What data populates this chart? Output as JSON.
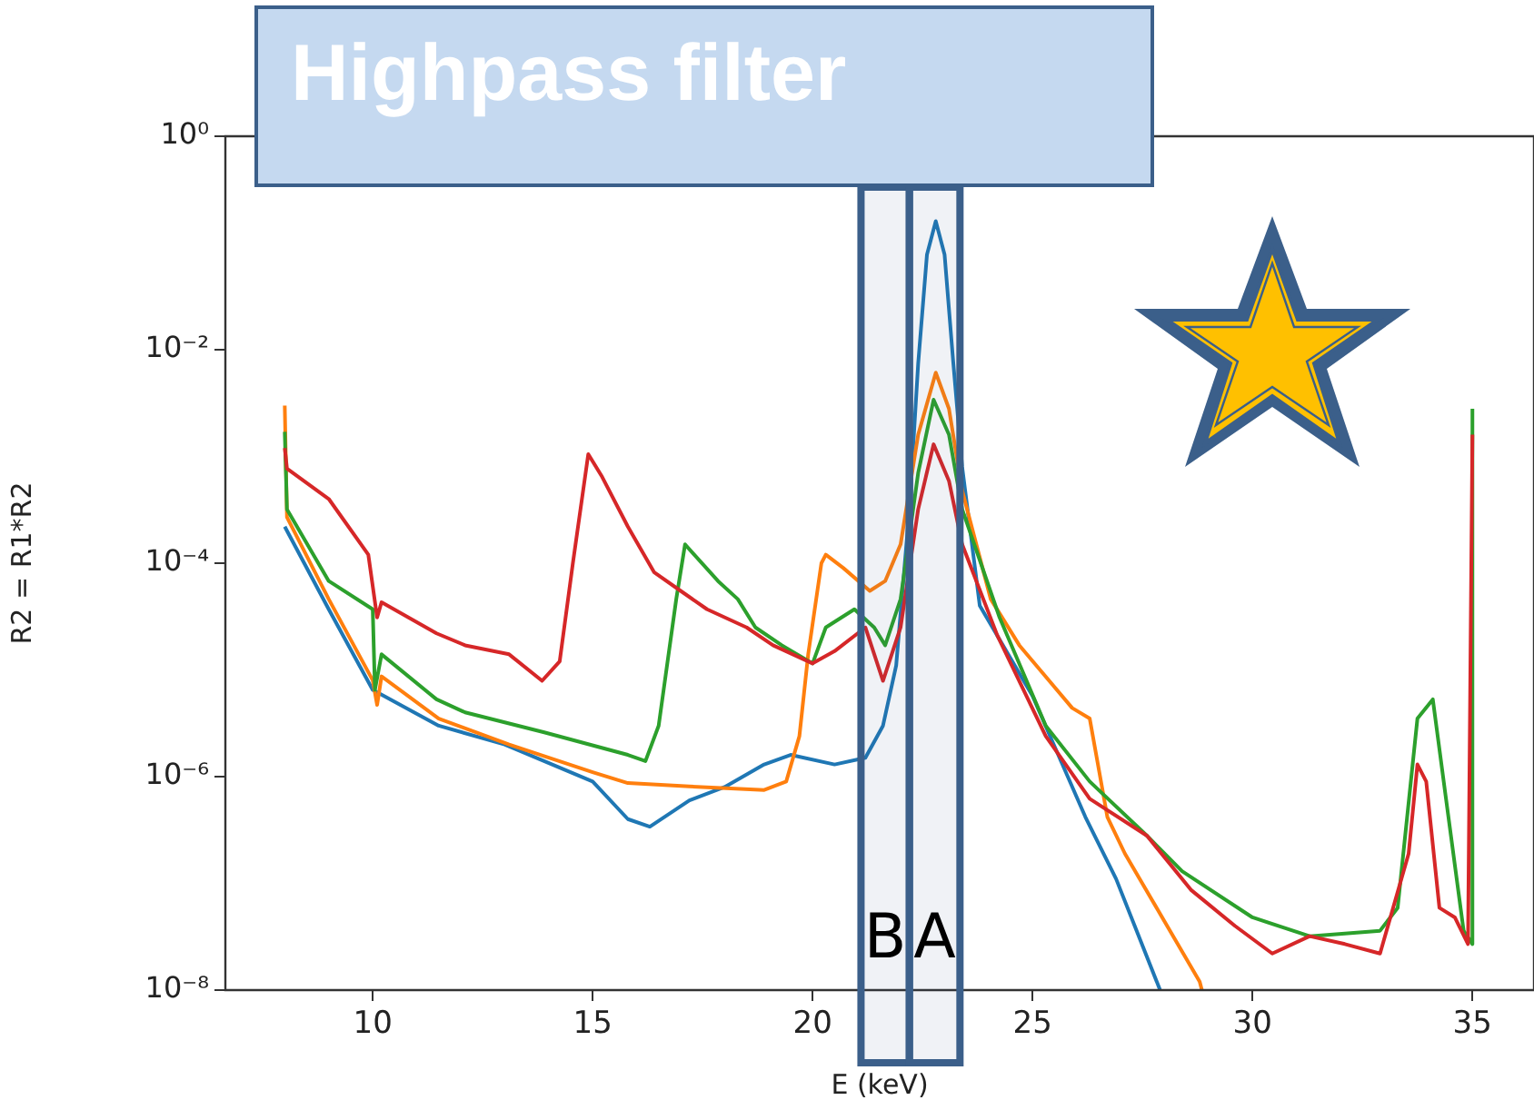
{
  "chart_data": {
    "type": "line",
    "title": "Highpass filter",
    "xlabel": "E (keV)",
    "ylabel": "R2 = R1*R2",
    "log": "y",
    "xlim": [
      6.65,
      36.4
    ],
    "xticks": [
      10,
      15,
      20,
      25,
      30,
      35
    ],
    "ylim": [
      1e-08,
      1
    ],
    "yticks": [
      {
        "value": 1e-08,
        "label": "10⁻⁸"
      },
      {
        "value": 1e-06,
        "label": "10⁻⁶"
      },
      {
        "value": 0.0001,
        "label": "10⁻⁴"
      },
      {
        "value": 0.01,
        "label": "10⁻²"
      },
      {
        "value": 1,
        "label": "10⁰"
      }
    ],
    "marker": "none",
    "line_style": "solid",
    "bands": [
      {
        "axis": "x",
        "from": 21.1,
        "to": 22.2,
        "label": "B",
        "color": "#3b5f8a"
      },
      {
        "axis": "x",
        "from": 22.2,
        "to": 23.35,
        "label": "A",
        "color": "#3b5f8a"
      }
    ],
    "series": [
      {
        "color": "#1f77b4",
        "x": [
          8.0,
          9.0,
          10.0,
          11.5,
          13.0,
          15.0,
          15.8,
          16.3,
          17.2,
          18.0,
          18.9,
          19.5,
          20.5,
          21.2,
          21.6,
          21.9,
          22.2,
          22.4,
          22.6,
          22.8,
          23.0,
          23.2,
          23.4,
          23.8,
          25.0,
          26.2,
          26.9,
          27.9
        ],
        "values": [
          0.00022,
          3.7e-05,
          6.5e-06,
          3e-06,
          2e-06,
          9e-07,
          4e-07,
          3.4e-07,
          6e-07,
          8e-07,
          1.3e-06,
          1.6e-06,
          1.3e-06,
          1.5e-06,
          3e-06,
          1.1e-05,
          0.00032,
          0.0074,
          0.078,
          0.16,
          0.078,
          0.0074,
          0.0008,
          4e-05,
          5.7e-06,
          4.2e-07,
          1.1e-07,
          1e-08
        ]
      },
      {
        "color": "#ff7f0e",
        "x": [
          8.0,
          8.05,
          9.0,
          10.0,
          10.1,
          10.2,
          11.5,
          13.1,
          15.0,
          15.8,
          17.2,
          18.9,
          19.4,
          19.7,
          19.9,
          20.2,
          20.3,
          20.7,
          21.3,
          21.65,
          22.0,
          22.4,
          22.8,
          23.1,
          23.4,
          24.05,
          24.7,
          25.9,
          26.3,
          26.7,
          27.1,
          28.8,
          28.85
        ],
        "values": [
          0.003,
          0.00027,
          4.6e-05,
          8e-06,
          4.7e-06,
          8.7e-06,
          3.5e-06,
          2e-06,
          1.1e-06,
          8.7e-07,
          8.1e-07,
          7.5e-07,
          9e-07,
          2.4e-06,
          1.4e-05,
          0.0001,
          0.00012,
          9e-05,
          5.5e-05,
          6.8e-05,
          0.00015,
          0.0016,
          0.0061,
          0.0028,
          0.00048,
          4.6e-05,
          1.7e-05,
          4.4e-06,
          3.5e-06,
          4.2e-07,
          1.9e-07,
          1.2e-08,
          1e-08
        ]
      },
      {
        "color": "#2ca02c",
        "x": [
          8.0,
          8.05,
          9.0,
          10.0,
          10.05,
          10.2,
          11.45,
          12.1,
          13.9,
          15.8,
          16.2,
          16.5,
          16.9,
          17.1,
          17.85,
          18.3,
          18.7,
          19.3,
          20.0,
          20.3,
          20.95,
          21.4,
          21.65,
          22.0,
          22.4,
          22.75,
          23.1,
          23.4,
          24.25,
          25.3,
          26.3,
          27.6,
          28.4,
          30.0,
          31.3,
          32.9,
          33.3,
          33.75,
          34.1,
          34.4,
          34.8,
          35.0,
          35.0
        ],
        "values": [
          0.0017,
          0.00032,
          6.8e-05,
          3.7e-05,
          6.5e-06,
          1.4e-05,
          5.3e-06,
          4e-06,
          2.6e-06,
          1.6e-06,
          1.4e-06,
          3e-06,
          4.6e-05,
          0.00015,
          6.8e-05,
          4.6e-05,
          2.5e-05,
          1.7e-05,
          1.15e-05,
          2.5e-05,
          3.7e-05,
          2.5e-05,
          1.7e-05,
          4.6e-05,
          0.0007,
          0.0034,
          0.0016,
          0.00032,
          3.1e-05,
          3e-06,
          9e-07,
          2.8e-07,
          1.3e-07,
          4.8e-08,
          3.2e-08,
          3.6e-08,
          5.9e-08,
          3.5e-06,
          5.3e-06,
          6.2e-07,
          3.6e-08,
          2.7e-08,
          0.0028
        ]
      },
      {
        "color": "#d62728",
        "x": [
          8.0,
          8.05,
          9.0,
          9.9,
          10.1,
          10.2,
          11.45,
          12.1,
          13.1,
          13.85,
          14.25,
          14.55,
          14.9,
          15.2,
          15.8,
          16.4,
          17.0,
          17.6,
          18.5,
          19.1,
          20.0,
          20.5,
          21.2,
          21.6,
          22.0,
          22.4,
          22.75,
          23.1,
          23.4,
          24.2,
          25.3,
          26.3,
          27.6,
          28.6,
          29.6,
          30.45,
          31.3,
          32.1,
          32.9,
          33.55,
          33.75,
          33.95,
          34.25,
          34.6,
          34.9,
          35.0
        ],
        "values": [
          0.0012,
          0.00077,
          0.0004,
          0.00012,
          3.1e-05,
          4.3e-05,
          2.2e-05,
          1.7e-05,
          1.4e-05,
          7.9e-06,
          1.2e-05,
          0.0001,
          0.00105,
          0.00066,
          0.00022,
          8.2e-05,
          5.5e-05,
          3.7e-05,
          2.5e-05,
          1.7e-05,
          1.15e-05,
          1.5e-05,
          2.5e-05,
          7.9e-06,
          2.5e-05,
          0.00032,
          0.0013,
          0.00059,
          0.00015,
          2.1e-05,
          2.4e-06,
          6.2e-07,
          2.8e-07,
          8.7e-08,
          4e-08,
          2.2e-08,
          3.2e-08,
          2.7e-08,
          2.2e-08,
          1.9e-07,
          1.3e-06,
          9e-07,
          5.9e-08,
          4.8e-08,
          2.7e-08,
          0.0016
        ]
      }
    ]
  }
}
